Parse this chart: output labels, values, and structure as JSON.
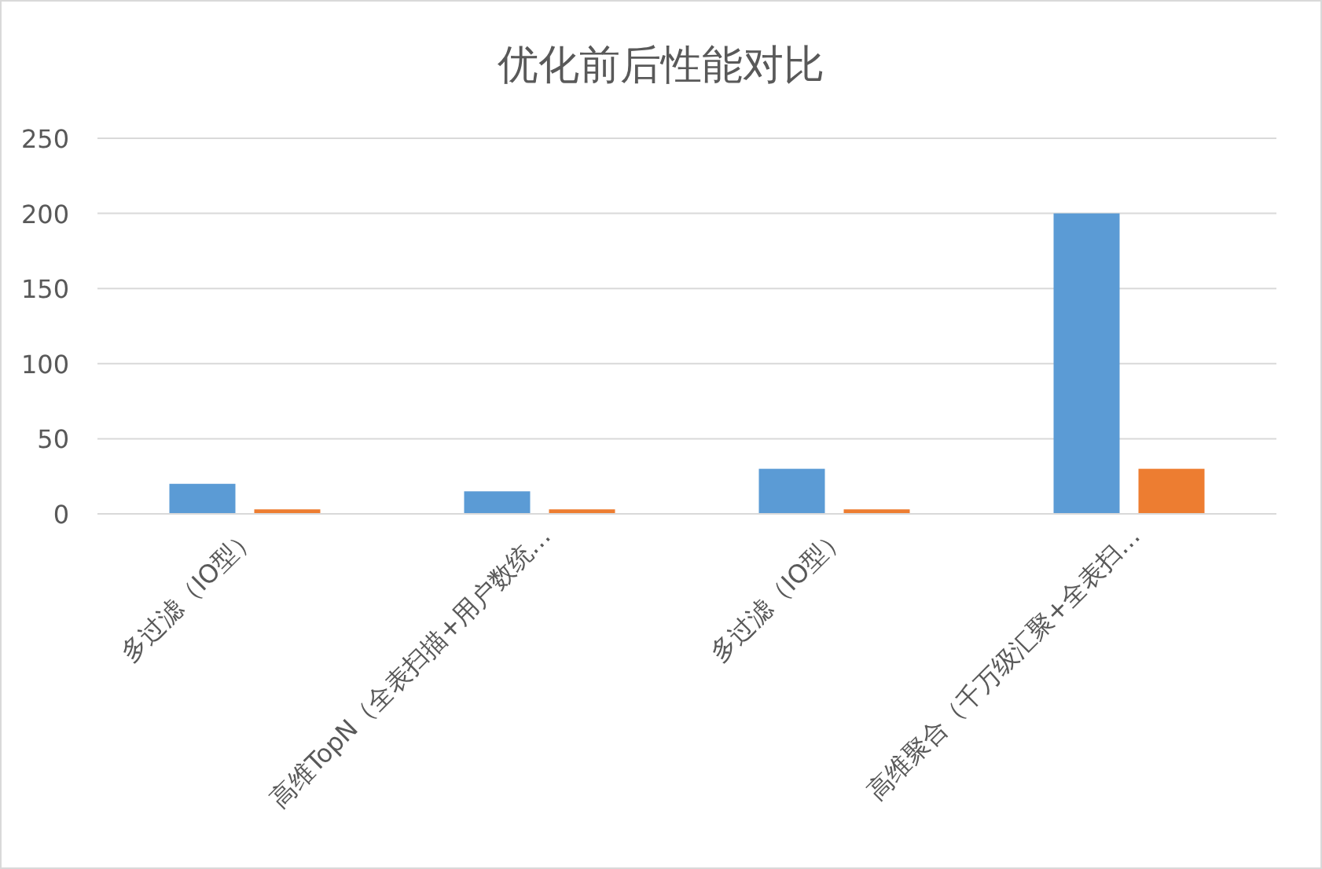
{
  "chart_data": {
    "type": "bar",
    "title": "优化前后性能对比",
    "categories": [
      "多过滤（IO型）",
      "高维TopN（全表扫描+用户数统…",
      "多过滤（IO型）",
      "高维聚合（千万级汇聚+全表扫…"
    ],
    "series": [
      {
        "color": "#5b9bd5",
        "values": [
          20,
          15,
          30,
          200
        ]
      },
      {
        "color": "#ed7d31",
        "values": [
          3,
          3,
          3,
          30
        ]
      }
    ],
    "ylim": [
      0,
      250
    ],
    "yticks": [
      0,
      50,
      100,
      150,
      200,
      250
    ],
    "grid": "y"
  }
}
